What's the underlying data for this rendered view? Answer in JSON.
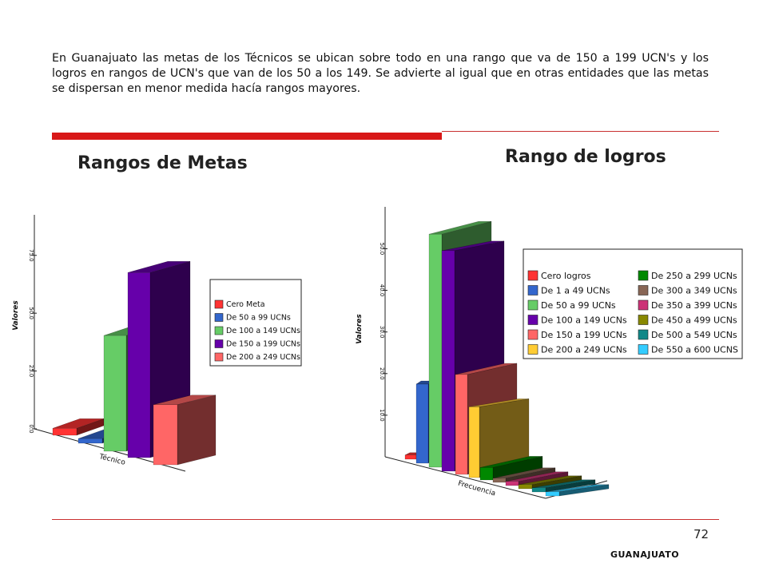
{
  "intro_text": "En Guanajuato las metas de los Técnicos se ubican sobre todo en una rango que va de 150 a 199 UCN's y los logros en rangos  de UCN's que van de los 50 a los 149. Se advierte al igual que en otras entidades que las metas se dispersan en menor medida hacía rangos mayores.",
  "heading_left": "Rangos de Metas",
  "heading_right": "Rango de logros",
  "page_number": "72",
  "footer": "GUANAJUATO",
  "chart_data": [
    {
      "type": "bar",
      "ylabel": "Valores",
      "category_label": "Técnico",
      "ylim": [
        0,
        87
      ],
      "yticks": [
        "0.0",
        "25.0",
        "50.0",
        "75.0"
      ],
      "ytick_values": [
        0,
        25,
        50,
        75
      ],
      "series": [
        {
          "name": "Cero Meta",
          "value": 3,
          "color": "#ff3333"
        },
        {
          "name": "De 50 a 99 UCNs",
          "value": 2,
          "color": "#3366cc"
        },
        {
          "name": "De 100 a 149 UCNs",
          "value": 50,
          "color": "#66cc66"
        },
        {
          "name": "De 150 a 199 UCNs",
          "value": 80,
          "color": "#6600aa"
        },
        {
          "name": "De 200 a 249 UCNs",
          "value": 26,
          "color": "#ff6666"
        }
      ]
    },
    {
      "type": "bar",
      "ylabel": "Valores",
      "category_label": "Frecuencia",
      "ylim": [
        0,
        57
      ],
      "yticks": [
        "10.0",
        "20.0",
        "30.0",
        "40.0",
        "50.0"
      ],
      "ytick_values": [
        10,
        20,
        30,
        40,
        50
      ],
      "series": [
        {
          "name": "Cero logros",
          "value": 1,
          "color": "#ff3333"
        },
        {
          "name": "De 1 a 49 UCNs",
          "value": 19,
          "color": "#3366cc"
        },
        {
          "name": "De 50 a 99 UCNs",
          "value": 56,
          "color": "#66cc66"
        },
        {
          "name": "De 100 a 149 UCNs",
          "value": 53,
          "color": "#6600aa"
        },
        {
          "name": "De 150 a 199 UCNs",
          "value": 24,
          "color": "#ff6666"
        },
        {
          "name": "De 200 a 249 UCNs",
          "value": 17,
          "color": "#ffcc33"
        },
        {
          "name": "De 250 a 299 UCNs",
          "value": 3,
          "color": "#008800"
        },
        {
          "name": "De 300 a 349 UCNs",
          "value": 1,
          "color": "#886655"
        },
        {
          "name": "De 350 a 399 UCNs",
          "value": 1,
          "color": "#cc3377"
        },
        {
          "name": "De 450 a 499 UCNs",
          "value": 1,
          "color": "#888800"
        },
        {
          "name": "De 500 a 549 UCNs",
          "value": 1,
          "color": "#118888"
        },
        {
          "name": "De 550 a 600 UCNS",
          "value": 1,
          "color": "#33ccff"
        }
      ]
    }
  ]
}
